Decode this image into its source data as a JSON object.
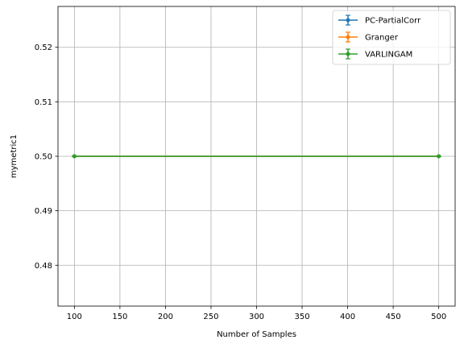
{
  "chart_data": {
    "type": "line",
    "title": "",
    "xlabel": "Number of Samples",
    "ylabel": "mymetric1",
    "xlim": [
      82,
      518
    ],
    "ylim": [
      0.4725,
      0.5275
    ],
    "xticks": [
      100,
      150,
      200,
      250,
      300,
      350,
      400,
      450,
      500
    ],
    "yticks": [
      0.48,
      0.49,
      0.5,
      0.51,
      0.52
    ],
    "xtick_labels": [
      "100",
      "150",
      "200",
      "250",
      "300",
      "350",
      "400",
      "450",
      "500"
    ],
    "ytick_labels": [
      "0.48",
      "0.49",
      "0.50",
      "0.51",
      "0.52"
    ],
    "grid": true,
    "legend_position": "top-right",
    "x": [
      100,
      500
    ],
    "series": [
      {
        "name": "PC-PartialCorr",
        "values": [
          0.5,
          0.5
        ],
        "error": [
          0,
          0
        ],
        "color": "#1f77b4"
      },
      {
        "name": "Granger",
        "values": [
          0.5,
          0.5
        ],
        "error": [
          0,
          0
        ],
        "color": "#ff7f0e"
      },
      {
        "name": "VARLINGAM",
        "values": [
          0.5,
          0.5
        ],
        "error": [
          0,
          0
        ],
        "color": "#2ca02c"
      }
    ]
  }
}
